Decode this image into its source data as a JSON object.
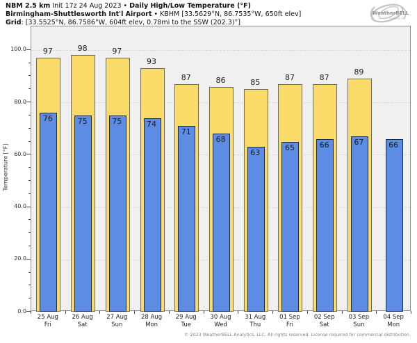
{
  "header": {
    "line1_bold_a": "NBM 2.5 km",
    "line1_reg": " Init 17z 24 Aug 2023 • ",
    "line1_bold_b": "Daily High/Low Temperature (°F)",
    "line2_bold": "Birmingham-Shuttlesworth Int'l Airport",
    "line2_reg": " • KBHM [33.5629°N, 86.7535°W, 650ft elev]",
    "line3_bold": "Grid",
    "line3_reg": ": [33.5525°N, 86.7586°W, 604ft elev, 0.78mi to the SSW (202.3)°]"
  },
  "logo": {
    "name": "WeatherBELL",
    "sub": "Analytics LLC"
  },
  "chart_data": {
    "type": "bar",
    "title": "NBM 2.5 km Init 17z 24 Aug 2023 • Daily High/Low Temperature (°F)",
    "subtitle": "Birmingham-Shuttlesworth Int'l Airport • KBHM [33.5629°N, 86.7535°W, 650ft elev]",
    "ylabel": "Temperature [°F]",
    "xlabel": "",
    "categories": [
      {
        "date": "25 Aug",
        "day": "Fri"
      },
      {
        "date": "26 Aug",
        "day": "Sat"
      },
      {
        "date": "27 Aug",
        "day": "Sun"
      },
      {
        "date": "28 Aug",
        "day": "Mon"
      },
      {
        "date": "29 Aug",
        "day": "Tue"
      },
      {
        "date": "30 Aug",
        "day": "Wed"
      },
      {
        "date": "31 Aug",
        "day": "Thu"
      },
      {
        "date": "01 Sep",
        "day": "Fri"
      },
      {
        "date": "02 Sep",
        "day": "Sat"
      },
      {
        "date": "03 Sep",
        "day": "Sun"
      },
      {
        "date": "04 Sep",
        "day": "Mon"
      }
    ],
    "series": [
      {
        "name": "Daily High",
        "color": "#fbdb69",
        "values": [
          97,
          98,
          97,
          93,
          87,
          86,
          85,
          87,
          87,
          89,
          null
        ]
      },
      {
        "name": "Daily Low",
        "color": "#5c8ce4",
        "values": [
          76,
          75,
          75,
          74,
          71,
          68,
          63,
          65,
          66,
          67,
          66
        ]
      }
    ],
    "ylim": [
      0,
      109
    ],
    "yticks": [
      0,
      20,
      40,
      60,
      80,
      100
    ],
    "ytick_labels": [
      "0.0",
      "20.0",
      "40.0",
      "60.0",
      "80.0",
      "100.0"
    ],
    "minor_tick_step": 5,
    "grid": true,
    "legend": "none",
    "plot_bg": "#f0f0f0",
    "grid_color": "#d7d7d7"
  },
  "footer": {
    "copyright": "© 2023 WeatherBELL Analytics, LLC. All rights reserved. License required for commercial distribution."
  }
}
